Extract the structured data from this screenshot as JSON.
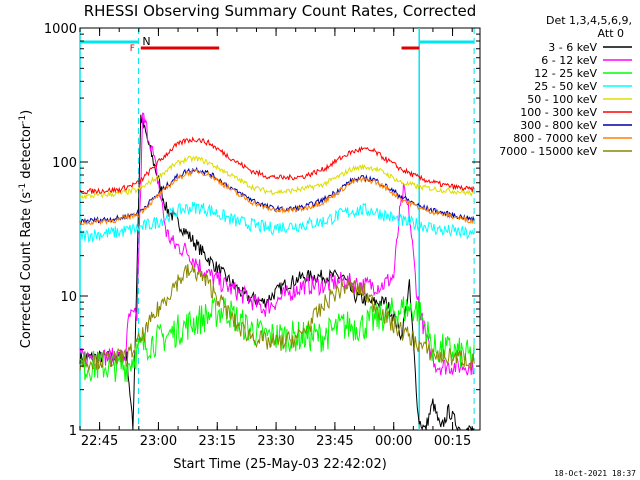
{
  "chart_data": {
    "type": "line",
    "title": "RHESSI Observing Summary Count Rates, Corrected",
    "xlabel": "Start Time (25-May-03 22:42:02)",
    "ylabel_main": "Corrected Count Rate (s",
    "ylabel_sup1": "-1",
    "ylabel_mid": " detector",
    "ylabel_sup2": "-1",
    "ylabel_end": ")",
    "yscale": "log",
    "ylim": [
      1,
      1000
    ],
    "xlim_minutes": [
      -2,
      100
    ],
    "x_tick_labels": [
      "22:45",
      "23:00",
      "23:15",
      "23:30",
      "23:45",
      "00:00",
      "00:15"
    ],
    "x_tick_minutes": [
      3,
      18,
      33,
      48,
      63,
      78,
      93
    ],
    "y_tick_labels": [
      "1",
      "10",
      "100",
      "1000"
    ],
    "y_tick_values": [
      1,
      10,
      100,
      1000
    ],
    "legend_header": [
      "Det 1,3,4,5,6,9,",
      "Att 0"
    ],
    "timestamp": "18-Oct-2021 18:37",
    "flag_labels": {
      "F": "F",
      "N": "N"
    },
    "attenuator_markers": [
      {
        "label": "N",
        "color": "#00e5ee",
        "minutes": [
          -2,
          12.9
        ]
      },
      {
        "label": "",
        "color": "#00e5ee",
        "minutes": [
          84.5,
          98.5
        ]
      }
    ],
    "flare_markers": [
      {
        "label": "F",
        "color": "#e00000",
        "minutes": [
          13.5,
          33.5
        ]
      },
      {
        "label": "",
        "color": "#e00000",
        "minutes": [
          80,
          84.5
        ]
      }
    ],
    "night_bounds_minutes": [
      {
        "solid": -2,
        "dashed": 12.9
      },
      {
        "solid": 84.5,
        "dashed": 98.5
      }
    ],
    "series": [
      {
        "name": "3 - 6 keV",
        "color": "#000000",
        "points": [
          [
            -2,
            3.5
          ],
          [
            10,
            3.5
          ],
          [
            11.5,
            1
          ],
          [
            13.5,
            220
          ],
          [
            16,
            120
          ],
          [
            20,
            45
          ],
          [
            25,
            30
          ],
          [
            30,
            20
          ],
          [
            35,
            14
          ],
          [
            40,
            10
          ],
          [
            45,
            9
          ],
          [
            50,
            12
          ],
          [
            55,
            14
          ],
          [
            60,
            14
          ],
          [
            65,
            14
          ],
          [
            68,
            10
          ],
          [
            72,
            9
          ],
          [
            76,
            9
          ],
          [
            78,
            7
          ],
          [
            80,
            5
          ],
          [
            82,
            12
          ],
          [
            84.3,
            1.2
          ],
          [
            86,
            1
          ],
          [
            88,
            1.6
          ],
          [
            90,
            1
          ],
          [
            92,
            1.4
          ],
          [
            95,
            1
          ],
          [
            98.5,
            1
          ]
        ]
      },
      {
        "name": "6 - 12 keV",
        "color": "#ff00ff",
        "points": [
          [
            -2,
            3.5
          ],
          [
            9.5,
            3.5
          ],
          [
            10.5,
            7
          ],
          [
            12.5,
            7
          ],
          [
            14,
            220
          ],
          [
            16,
            140
          ],
          [
            18,
            70
          ],
          [
            20,
            30
          ],
          [
            22,
            24
          ],
          [
            25,
            22
          ],
          [
            30,
            15
          ],
          [
            35,
            12
          ],
          [
            40,
            10
          ],
          [
            45,
            8
          ],
          [
            50,
            10
          ],
          [
            55,
            12
          ],
          [
            60,
            12
          ],
          [
            65,
            13
          ],
          [
            70,
            12
          ],
          [
            75,
            12
          ],
          [
            78,
            14
          ],
          [
            79.5,
            40
          ],
          [
            80.5,
            60
          ],
          [
            82,
            40
          ],
          [
            84,
            10
          ],
          [
            85,
            7
          ],
          [
            87,
            4
          ],
          [
            89,
            3
          ],
          [
            98.5,
            3
          ]
        ]
      },
      {
        "name": "12 - 25 keV",
        "color": "#00ff00",
        "points": [
          [
            -2,
            3
          ],
          [
            10,
            3
          ],
          [
            13,
            4
          ],
          [
            16,
            4.5
          ],
          [
            20,
            5
          ],
          [
            25,
            6
          ],
          [
            30,
            7
          ],
          [
            35,
            8
          ],
          [
            40,
            6
          ],
          [
            45,
            5
          ],
          [
            50,
            5
          ],
          [
            55,
            5
          ],
          [
            60,
            5
          ],
          [
            65,
            6
          ],
          [
            70,
            6
          ],
          [
            75,
            7
          ],
          [
            80,
            8
          ],
          [
            84,
            8
          ],
          [
            86,
            6
          ],
          [
            88,
            4
          ],
          [
            91,
            4
          ],
          [
            98.5,
            3.5
          ]
        ]
      },
      {
        "name": "25 - 50 keV",
        "color": "#00ffff",
        "points": [
          [
            -2,
            28
          ],
          [
            8,
            30
          ],
          [
            13,
            32
          ],
          [
            18,
            36
          ],
          [
            22,
            42
          ],
          [
            25,
            45
          ],
          [
            28,
            46
          ],
          [
            31,
            44
          ],
          [
            34,
            40
          ],
          [
            38,
            36
          ],
          [
            42,
            34
          ],
          [
            46,
            32
          ],
          [
            50,
            33
          ],
          [
            55,
            34
          ],
          [
            60,
            36
          ],
          [
            64,
            40
          ],
          [
            67,
            43
          ],
          [
            70,
            44
          ],
          [
            73,
            43
          ],
          [
            76,
            40
          ],
          [
            80,
            36
          ],
          [
            85,
            34
          ],
          [
            90,
            31
          ],
          [
            95,
            30
          ],
          [
            98.5,
            28
          ]
        ]
      },
      {
        "name": "50 - 100 keV",
        "color": "#dddd00",
        "points": [
          [
            -2,
            55
          ],
          [
            8,
            58
          ],
          [
            13,
            62
          ],
          [
            18,
            78
          ],
          [
            22,
            95
          ],
          [
            25,
            105
          ],
          [
            28,
            106
          ],
          [
            31,
            98
          ],
          [
            34,
            88
          ],
          [
            38,
            75
          ],
          [
            42,
            65
          ],
          [
            46,
            60
          ],
          [
            50,
            60
          ],
          [
            55,
            63
          ],
          [
            60,
            68
          ],
          [
            64,
            78
          ],
          [
            67,
            88
          ],
          [
            70,
            92
          ],
          [
            73,
            90
          ],
          [
            76,
            82
          ],
          [
            80,
            70
          ],
          [
            85,
            65
          ],
          [
            90,
            62
          ],
          [
            95,
            60
          ],
          [
            98.5,
            58
          ]
        ]
      },
      {
        "name": "100 - 300 keV",
        "color": "#ff0000",
        "points": [
          [
            -2,
            60
          ],
          [
            8,
            62
          ],
          [
            13,
            70
          ],
          [
            18,
            100
          ],
          [
            22,
            130
          ],
          [
            25,
            145
          ],
          [
            28,
            148
          ],
          [
            31,
            138
          ],
          [
            34,
            120
          ],
          [
            38,
            100
          ],
          [
            42,
            85
          ],
          [
            46,
            78
          ],
          [
            50,
            76
          ],
          [
            55,
            78
          ],
          [
            60,
            88
          ],
          [
            64,
            105
          ],
          [
            67,
            118
          ],
          [
            70,
            125
          ],
          [
            73,
            120
          ],
          [
            76,
            105
          ],
          [
            80,
            88
          ],
          [
            85,
            75
          ],
          [
            90,
            68
          ],
          [
            95,
            64
          ],
          [
            98.5,
            62
          ]
        ]
      },
      {
        "name": "300 - 800 keV",
        "color": "#0000aa",
        "points": [
          [
            -2,
            36
          ],
          [
            8,
            38
          ],
          [
            13,
            42
          ],
          [
            18,
            58
          ],
          [
            22,
            75
          ],
          [
            25,
            85
          ],
          [
            28,
            88
          ],
          [
            31,
            82
          ],
          [
            34,
            72
          ],
          [
            38,
            60
          ],
          [
            42,
            52
          ],
          [
            46,
            46
          ],
          [
            50,
            44
          ],
          [
            55,
            46
          ],
          [
            60,
            52
          ],
          [
            64,
            62
          ],
          [
            67,
            72
          ],
          [
            70,
            76
          ],
          [
            73,
            74
          ],
          [
            76,
            66
          ],
          [
            80,
            55
          ],
          [
            85,
            46
          ],
          [
            90,
            42
          ],
          [
            95,
            39
          ],
          [
            98.5,
            37
          ]
        ]
      },
      {
        "name": "800 - 7000 keV",
        "color": "#ff8000",
        "points": [
          [
            -2,
            35
          ],
          [
            8,
            37
          ],
          [
            13,
            41
          ],
          [
            18,
            56
          ],
          [
            22,
            72
          ],
          [
            25,
            82
          ],
          [
            28,
            86
          ],
          [
            31,
            80
          ],
          [
            34,
            70
          ],
          [
            38,
            58
          ],
          [
            42,
            50
          ],
          [
            46,
            45
          ],
          [
            50,
            43
          ],
          [
            55,
            45
          ],
          [
            60,
            50
          ],
          [
            64,
            60
          ],
          [
            67,
            70
          ],
          [
            70,
            74
          ],
          [
            73,
            72
          ],
          [
            76,
            64
          ],
          [
            80,
            53
          ],
          [
            85,
            45
          ],
          [
            90,
            41
          ],
          [
            95,
            38
          ],
          [
            98.5,
            36
          ]
        ]
      },
      {
        "name": "7000 - 15000 keV",
        "color": "#888800",
        "points": [
          [
            -2,
            3.2
          ],
          [
            10,
            3.5
          ],
          [
            14,
            5
          ],
          [
            18,
            8
          ],
          [
            22,
            12
          ],
          [
            25,
            15
          ],
          [
            28,
            15
          ],
          [
            31,
            12
          ],
          [
            34,
            9
          ],
          [
            38,
            6
          ],
          [
            42,
            5
          ],
          [
            46,
            4.5
          ],
          [
            50,
            4.5
          ],
          [
            54,
            5
          ],
          [
            58,
            7
          ],
          [
            62,
            10
          ],
          [
            66,
            12
          ],
          [
            70,
            11
          ],
          [
            74,
            8
          ],
          [
            78,
            6
          ],
          [
            82,
            5
          ],
          [
            86,
            4
          ],
          [
            90,
            3.5
          ],
          [
            95,
            3.5
          ],
          [
            98.5,
            3.2
          ]
        ]
      }
    ]
  }
}
